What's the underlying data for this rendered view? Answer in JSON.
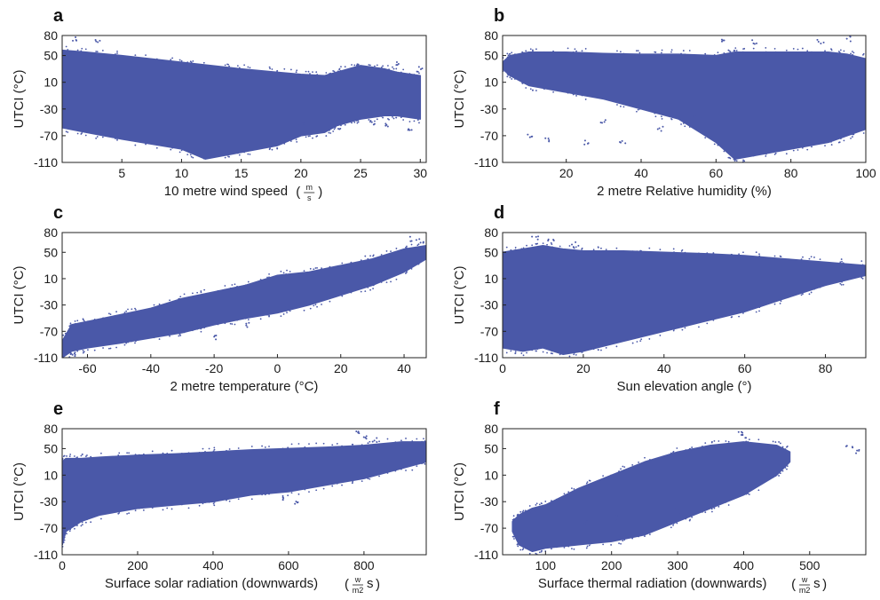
{
  "figure": {
    "marker_color": "#4a58a8"
  },
  "chart_data": [
    {
      "panel": "a",
      "type": "scatter",
      "xlabel": "10 metre wind speed",
      "xunit": {
        "num": "m",
        "den": "s"
      },
      "ylabel": "UTCI (°C)",
      "xlim": [
        0,
        30.5
      ],
      "ylim": [
        -110,
        80
      ],
      "xticks": [
        5,
        10,
        15,
        20,
        25,
        30
      ],
      "yticks": [
        80,
        50,
        10,
        -30,
        -70,
        -110
      ],
      "envelope": {
        "x": [
          0,
          2,
          5,
          10,
          12,
          15,
          18,
          20,
          22,
          23,
          24,
          25,
          27,
          28,
          30
        ],
        "upper": [
          58,
          55,
          50,
          40,
          36,
          30,
          25,
          22,
          20,
          25,
          30,
          35,
          30,
          25,
          20
        ],
        "lower": [
          -58,
          -65,
          -75,
          -90,
          -105,
          -95,
          -85,
          -70,
          -65,
          -55,
          -50,
          -45,
          -40,
          -40,
          -45
        ]
      },
      "outliers": [
        [
          1,
          75
        ],
        [
          3,
          70
        ],
        [
          25,
          33
        ],
        [
          28,
          37
        ],
        [
          30,
          30
        ],
        [
          26,
          -50
        ],
        [
          29,
          -60
        ],
        [
          23,
          -60
        ],
        [
          20,
          -50
        ],
        [
          27,
          -55
        ]
      ]
    },
    {
      "panel": "b",
      "type": "scatter",
      "xlabel": "2 metre Relative humidity (%)",
      "ylabel": "UTCI (°C)",
      "xlim": [
        3,
        100
      ],
      "ylim": [
        -110,
        80
      ],
      "xticks": [
        20,
        40,
        60,
        80,
        100
      ],
      "yticks": [
        80,
        50,
        10,
        -30,
        -70,
        -110
      ],
      "envelope": {
        "x": [
          3,
          5,
          10,
          20,
          30,
          40,
          50,
          60,
          65,
          70,
          80,
          90,
          95,
          100
        ],
        "upper": [
          40,
          50,
          55,
          55,
          53,
          52,
          52,
          50,
          55,
          55,
          55,
          55,
          52,
          45
        ],
        "lower": [
          30,
          20,
          5,
          -5,
          -15,
          -30,
          -45,
          -80,
          -105,
          -100,
          -90,
          -80,
          -70,
          -60
        ]
      },
      "outliers": [
        [
          62,
          72
        ],
        [
          70,
          70
        ],
        [
          88,
          72
        ],
        [
          95,
          75
        ],
        [
          10,
          -70
        ],
        [
          15,
          -75
        ],
        [
          25,
          -80
        ],
        [
          35,
          -78
        ],
        [
          30,
          -50
        ],
        [
          45,
          -60
        ],
        [
          55,
          -40
        ]
      ]
    },
    {
      "panel": "c",
      "type": "scatter",
      "xlabel": "2 metre temperature (°C)",
      "ylabel": "UTCI (°C)",
      "xlim": [
        -68,
        47
      ],
      "ylim": [
        -110,
        80
      ],
      "xticks": [
        -60,
        -40,
        -20,
        0,
        20,
        40
      ],
      "yticks": [
        80,
        50,
        10,
        -30,
        -70,
        -110
      ],
      "envelope": {
        "x": [
          -68,
          -65,
          -60,
          -50,
          -40,
          -30,
          -20,
          -10,
          0,
          10,
          20,
          30,
          40,
          47
        ],
        "upper": [
          -85,
          -60,
          -55,
          -45,
          -35,
          -20,
          -10,
          0,
          15,
          20,
          30,
          40,
          55,
          60
        ],
        "lower": [
          -110,
          -100,
          -95,
          -88,
          -80,
          -72,
          -60,
          -50,
          -42,
          -30,
          -15,
          0,
          20,
          40
        ]
      },
      "outliers": [
        [
          43,
          70
        ],
        [
          45,
          68
        ],
        [
          -20,
          -80
        ],
        [
          -10,
          -60
        ],
        [
          -65,
          -105
        ]
      ]
    },
    {
      "panel": "d",
      "type": "scatter",
      "xlabel": "Sun elevation angle (°)",
      "ylabel": "UTCI (°C)",
      "xlim": [
        0,
        90
      ],
      "ylim": [
        -110,
        80
      ],
      "xticks": [
        0,
        20,
        40,
        60,
        80
      ],
      "yticks": [
        80,
        50,
        10,
        -30,
        -70,
        -110
      ],
      "envelope": {
        "x": [
          0,
          5,
          10,
          15,
          20,
          30,
          40,
          50,
          60,
          70,
          80,
          90
        ],
        "upper": [
          50,
          55,
          60,
          55,
          52,
          52,
          50,
          48,
          45,
          40,
          35,
          30
        ],
        "lower": [
          -95,
          -100,
          -95,
          -105,
          -100,
          -85,
          -70,
          -55,
          -40,
          -20,
          0,
          15
        ]
      },
      "outliers": [
        [
          8,
          72
        ],
        [
          12,
          68
        ],
        [
          18,
          62
        ]
      ]
    },
    {
      "panel": "e",
      "type": "scatter",
      "xlabel": "Surface solar radiation (downwards)",
      "xunit": {
        "num": "w",
        "den": "m2",
        "suffix": "s"
      },
      "ylabel": "UTCI (°C)",
      "xlim": [
        0,
        965
      ],
      "ylim": [
        -110,
        80
      ],
      "xticks": [
        0,
        200,
        400,
        600,
        800
      ],
      "yticks": [
        80,
        50,
        10,
        -30,
        -70,
        -110
      ],
      "envelope": {
        "x": [
          0,
          10,
          50,
          100,
          200,
          300,
          400,
          500,
          600,
          700,
          800,
          900,
          965
        ],
        "upper": [
          30,
          35,
          35,
          37,
          40,
          42,
          45,
          48,
          50,
          52,
          55,
          60,
          60
        ],
        "lower": [
          -95,
          -75,
          -60,
          -50,
          -40,
          -35,
          -30,
          -20,
          -15,
          -5,
          5,
          20,
          30
        ]
      },
      "outliers": [
        [
          780,
          72
        ],
        [
          800,
          68
        ],
        [
          830,
          62
        ],
        [
          620,
          -30
        ],
        [
          580,
          -25
        ]
      ]
    },
    {
      "panel": "f",
      "type": "scatter",
      "xlabel": "Surface thermal radiation (downwards)",
      "xunit": {
        "num": "w",
        "den": "m2",
        "suffix": "s"
      },
      "ylabel": "UTCI (°C)",
      "xlim": [
        35,
        585
      ],
      "ylim": [
        -110,
        80
      ],
      "xticks": [
        100,
        200,
        300,
        400,
        500
      ],
      "yticks": [
        80,
        50,
        10,
        -30,
        -70,
        -110
      ],
      "envelope": {
        "x": [
          50,
          60,
          80,
          100,
          150,
          200,
          250,
          300,
          350,
          400,
          450,
          470
        ],
        "upper": [
          -60,
          -50,
          -40,
          -35,
          -10,
          10,
          30,
          45,
          55,
          60,
          55,
          45
        ],
        "lower": [
          -75,
          -95,
          -105,
          -100,
          -95,
          -90,
          -80,
          -60,
          -40,
          -20,
          10,
          30
        ]
      },
      "outliers": [
        [
          395,
          72
        ],
        [
          400,
          70
        ],
        [
          560,
          55
        ],
        [
          575,
          45
        ],
        [
          80,
          -45
        ],
        [
          160,
          -60
        ],
        [
          210,
          -55
        ],
        [
          300,
          -45
        ]
      ]
    }
  ]
}
